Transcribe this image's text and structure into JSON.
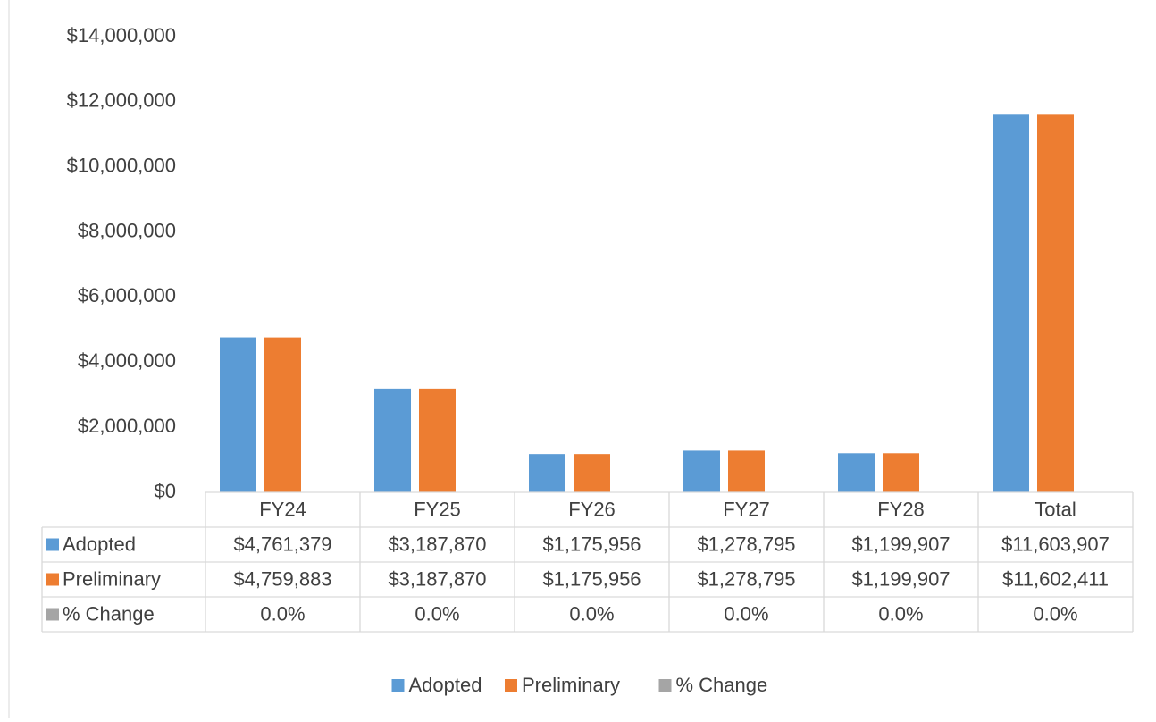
{
  "chart_data": {
    "type": "bar",
    "categories": [
      "FY24",
      "FY25",
      "FY26",
      "FY27",
      "FY28",
      "Total"
    ],
    "series": [
      {
        "name": "Adopted",
        "color": "#5b9bd5",
        "values": [
          4761379,
          3187870,
          1175956,
          1278795,
          1199907,
          11603907
        ],
        "value_labels": [
          "$4,761,379",
          "$3,187,870",
          "$1,175,956",
          "$1,278,795",
          "$1,199,907",
          "$11,603,907"
        ]
      },
      {
        "name": "Preliminary",
        "color": "#ed7d31",
        "values": [
          4759883,
          3187870,
          1175956,
          1278795,
          1199907,
          11602411
        ],
        "value_labels": [
          "$4,759,883",
          "$3,187,870",
          "$1,175,956",
          "$1,278,795",
          "$1,199,907",
          "$11,602,411"
        ]
      },
      {
        "name": "% Change",
        "color": "#a5a5a5",
        "values": [
          0,
          0,
          0,
          0,
          0,
          0
        ],
        "value_labels": [
          "0.0%",
          "0.0%",
          "0.0%",
          "0.0%",
          "0.0%",
          "0.0%"
        ]
      }
    ],
    "ylim": [
      0,
      14000000
    ],
    "yticks": [
      {
        "value": 0,
        "label": "$0"
      },
      {
        "value": 2000000,
        "label": "$2,000,000"
      },
      {
        "value": 4000000,
        "label": "$4,000,000"
      },
      {
        "value": 6000000,
        "label": "$6,000,000"
      },
      {
        "value": 8000000,
        "label": "$8,000,000"
      },
      {
        "value": 10000000,
        "label": "$10,000,000"
      },
      {
        "value": 12000000,
        "label": "$12,000,000"
      },
      {
        "value": 14000000,
        "label": "$14,000,000"
      }
    ],
    "grid": false,
    "legend": "bottom"
  }
}
